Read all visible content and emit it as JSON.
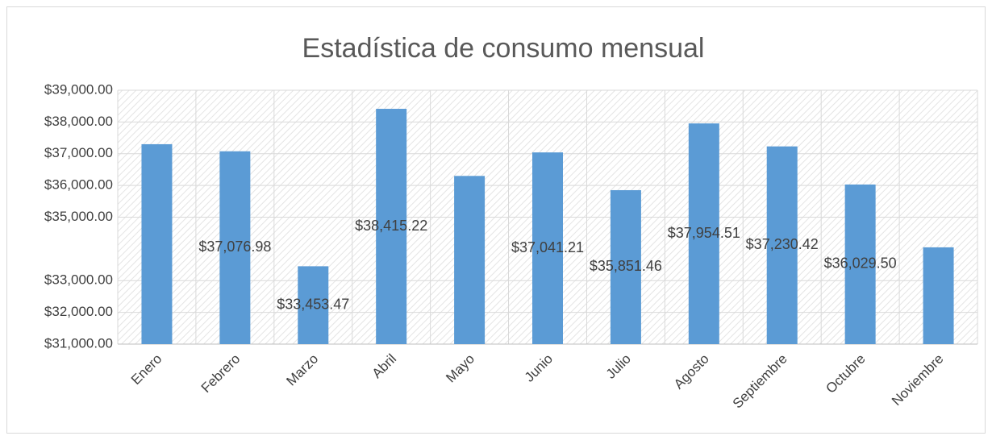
{
  "chart_data": {
    "type": "bar",
    "title": "Estadística de consumo mensual",
    "categories": [
      "Enero",
      "Febrero",
      "Marzo",
      "Abril",
      "Mayo",
      "Junio",
      "Julio",
      "Agosto",
      "Septiembre",
      "Octubre",
      "Noviembre"
    ],
    "values": [
      37300,
      37076.98,
      33453.47,
      38415.22,
      36300,
      37041.21,
      35851.46,
      37954.51,
      37230.42,
      36029.5,
      34050
    ],
    "value_labels": [
      null,
      "$37,076.98",
      "$33,453.47",
      "$38,415.22",
      null,
      "$37,041.21",
      "$35,851.46",
      "$37,954.51",
      "$37,230.42",
      "$36,029.50",
      null
    ],
    "color": "#5b9bd5",
    "ylim": [
      31000,
      39000
    ],
    "yticks": [
      {
        "value": 31000,
        "label": "$31,000.00"
      },
      {
        "value": 32000,
        "label": "$32,000.00"
      },
      {
        "value": 33000,
        "label": "$33,000.00"
      },
      {
        "value": 35000,
        "label": "$35,000.00"
      },
      {
        "value": 36000,
        "label": "$36,000.00"
      },
      {
        "value": 37000,
        "label": "$37,000.00"
      },
      {
        "value": 38000,
        "label": "$38,000.00"
      },
      {
        "value": 39000,
        "label": "$39,000.00"
      }
    ],
    "grid": true
  }
}
